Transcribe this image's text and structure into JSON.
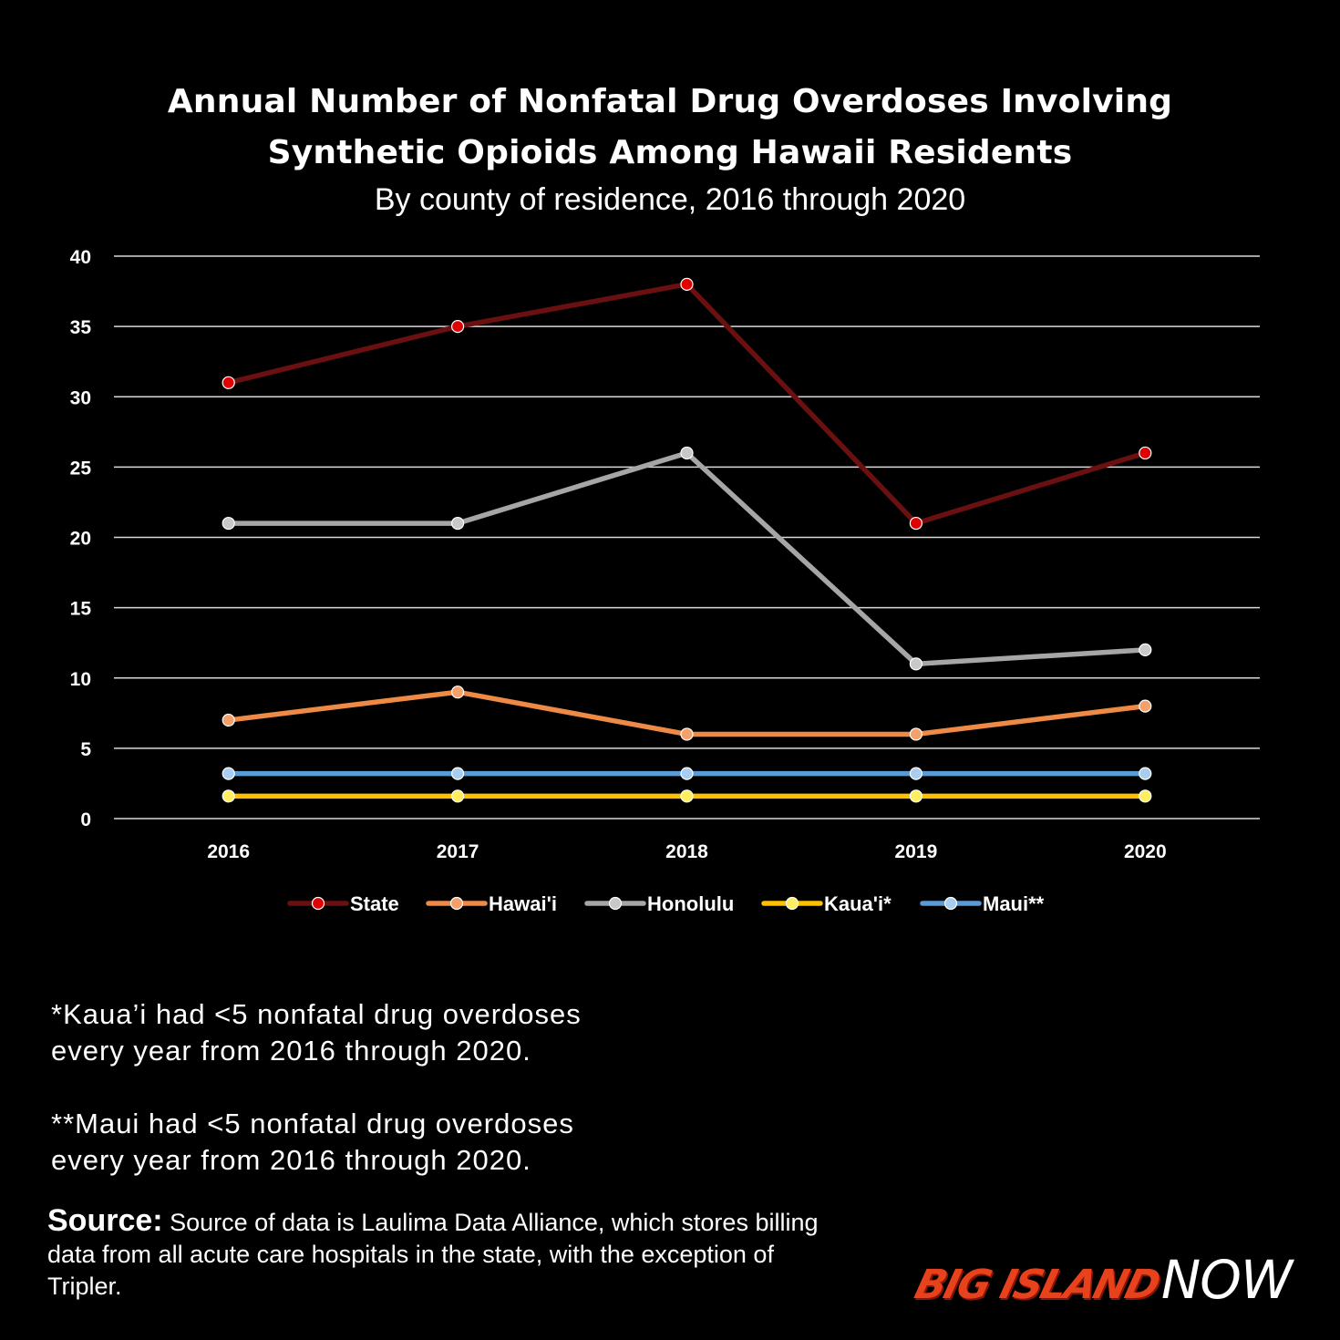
{
  "header": {
    "title_line1": "Annual Number of Nonfatal Drug Overdoses Involving",
    "title_line2": "Synthetic Opioids Among Hawaii Residents",
    "subtitle": "By county of residence, 2016 through 2020"
  },
  "chart_data": {
    "type": "line",
    "title": "Annual Number of Nonfatal Drug Overdoses Involving Synthetic Opioids Among Hawaii Residents",
    "subtitle": "By county of residence, 2016 through 2020",
    "xlabel": "",
    "ylabel": "",
    "categories": [
      "2016",
      "2017",
      "2018",
      "2019",
      "2020"
    ],
    "ylim": [
      0,
      40
    ],
    "yticks": [
      0,
      5,
      10,
      15,
      20,
      25,
      30,
      35,
      40
    ],
    "grid": true,
    "legend_position": "bottom",
    "series": [
      {
        "name": "State",
        "values": [
          31,
          35,
          38,
          21,
          26
        ],
        "line_color": "#6b1010",
        "marker_color": "#e00000"
      },
      {
        "name": "Hawai'i",
        "values": [
          7,
          9,
          6,
          6,
          8
        ],
        "line_color": "#ee8a45",
        "marker_color": "#f4a06a"
      },
      {
        "name": "Honolulu",
        "values": [
          21,
          21,
          26,
          11,
          12
        ],
        "line_color": "#a6a6a6",
        "marker_color": "#c8c8c8"
      },
      {
        "name": "Kaua'i*",
        "values": [
          1.6,
          1.6,
          1.6,
          1.6,
          1.6
        ],
        "line_color": "#ffc000",
        "marker_color": "#ffef60"
      },
      {
        "name": "Maui**",
        "values": [
          3.2,
          3.2,
          3.2,
          3.2,
          3.2
        ],
        "line_color": "#5b9bd5",
        "marker_color": "#a9cdf0"
      }
    ]
  },
  "notes": {
    "kauai_line1": "*Kaua’i had <5 nonfatal drug overdoses",
    "kauai_line2": "every year from 2016 through 2020.",
    "maui_line1": "**Maui had <5 nonfatal drug overdoses",
    "maui_line2": "every year from 2016 through 2020."
  },
  "source": {
    "label": "Source:",
    "text": "Source of data is Laulima Data Alliance, which stores billing data from all acute care hospitals in the state, with the exception of Tripler."
  },
  "logo": {
    "big_island": "BIG ISLAND",
    "now": "NOW"
  }
}
